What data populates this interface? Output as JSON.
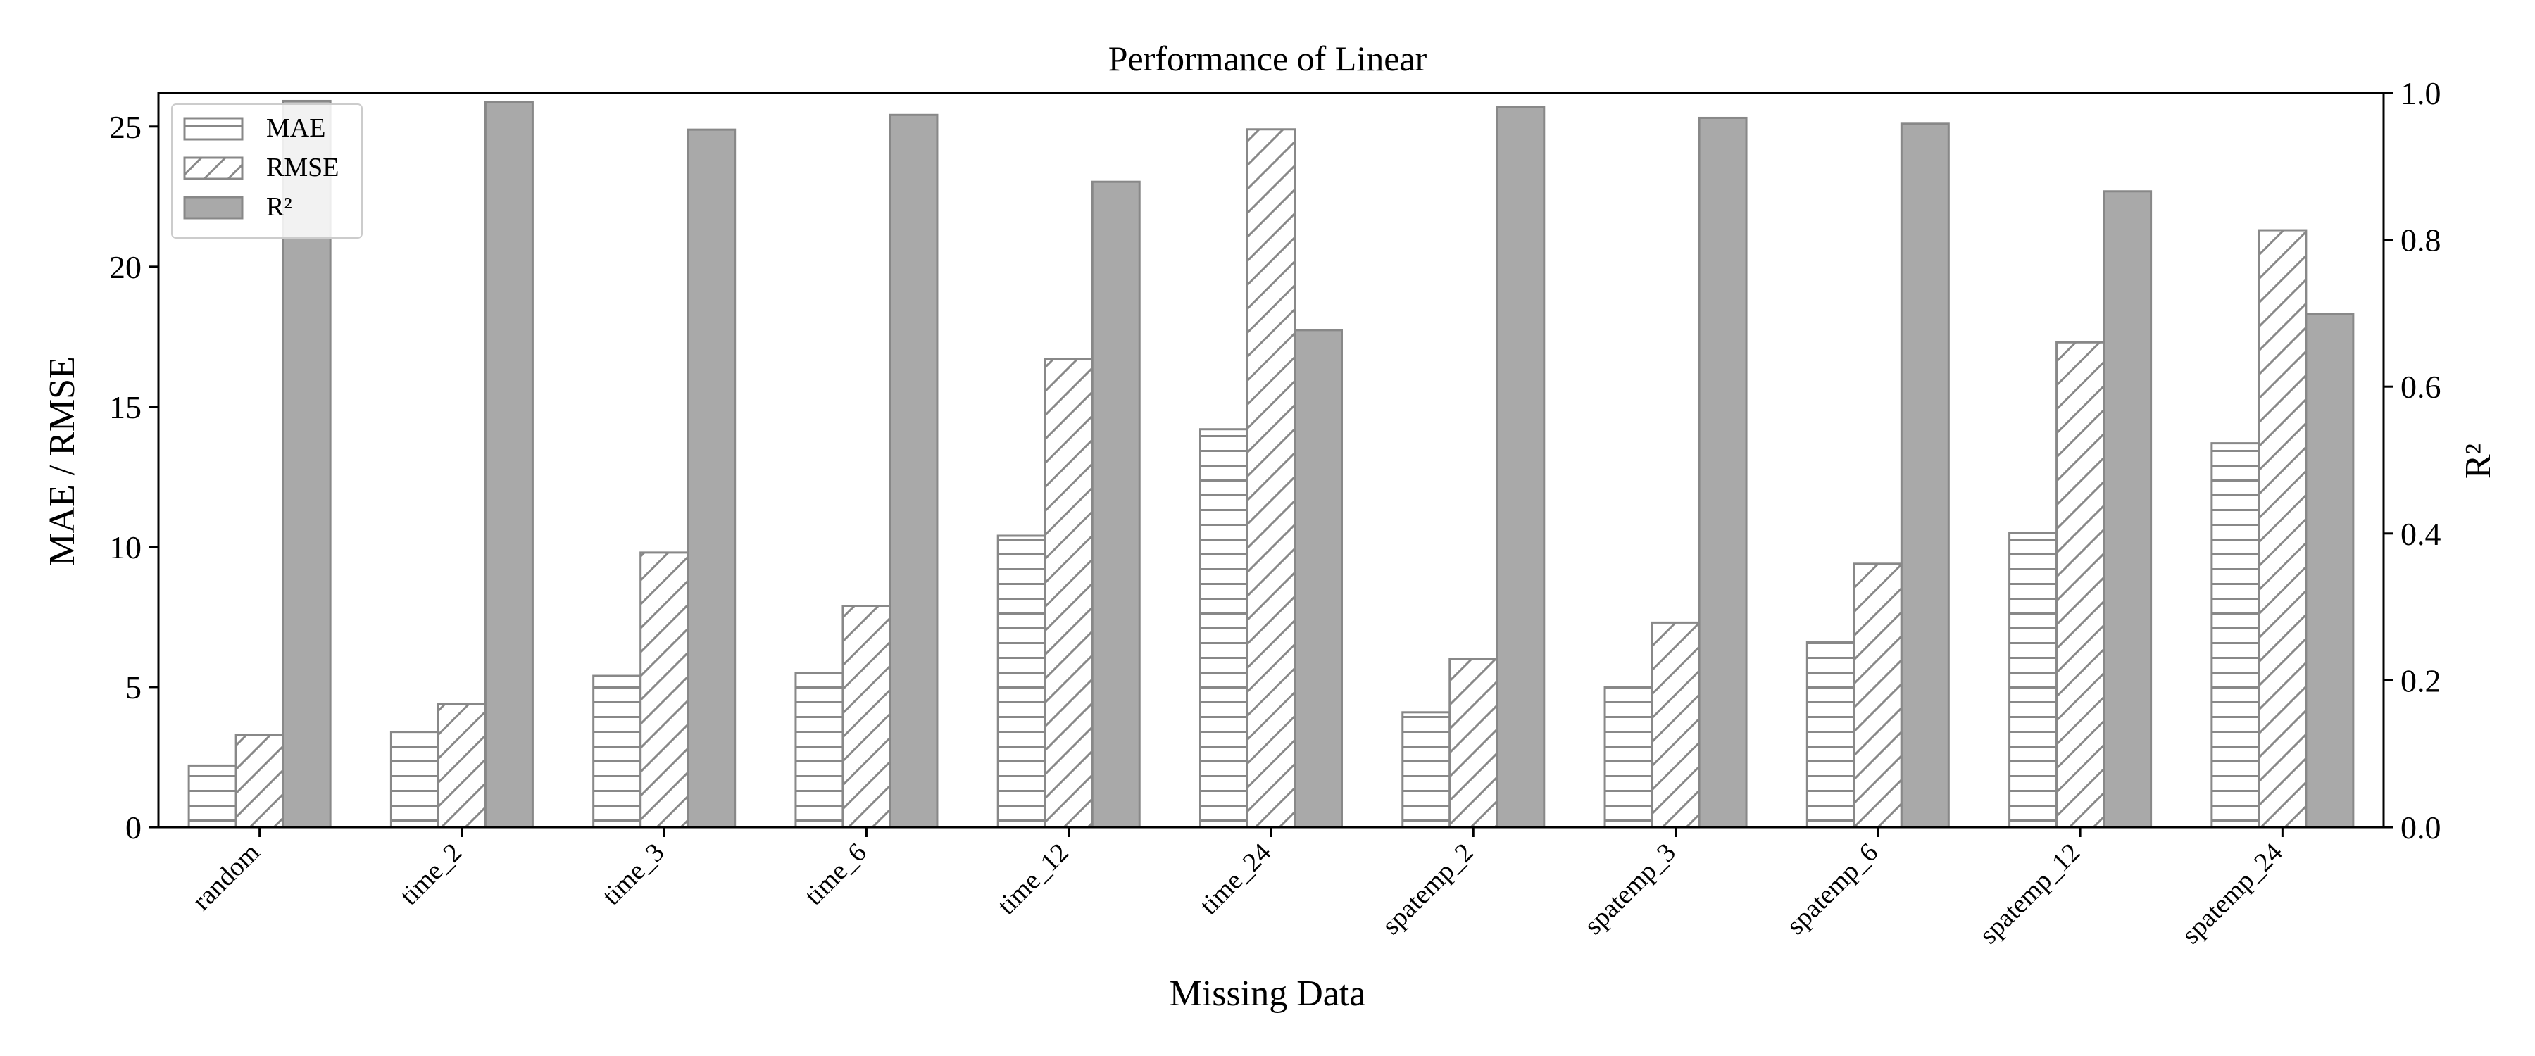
{
  "chart_data": {
    "type": "bar",
    "title": "Performance of Linear",
    "xlabel": "Missing Data",
    "ylabel_left": "MAE / RMSE",
    "ylabel_right": "R²",
    "categories": [
      "random",
      "time_2",
      "time_3",
      "time_6",
      "time_12",
      "time_24",
      "spatemp_2",
      "spatemp_3",
      "spatemp_6",
      "spatemp_12",
      "spatemp_24"
    ],
    "ylim_left": [
      0,
      26.2
    ],
    "ylim_right": [
      0,
      1.0
    ],
    "yticks_left": [
      0,
      5,
      10,
      15,
      20,
      25
    ],
    "yticks_right": [
      0.0,
      0.2,
      0.4,
      0.6,
      0.8,
      1.0
    ],
    "grid": false,
    "legend_position": "top-left",
    "series": [
      {
        "name": "MAE",
        "axis": "left",
        "pattern": "horizontal-hatch",
        "color": "#888888",
        "values": [
          2.2,
          3.4,
          5.4,
          5.5,
          10.4,
          14.2,
          4.1,
          5.0,
          6.6,
          10.5,
          13.7
        ]
      },
      {
        "name": "RMSE",
        "axis": "left",
        "pattern": "diagonal-hatch",
        "color": "#888888",
        "values": [
          3.3,
          4.4,
          9.8,
          7.9,
          16.7,
          24.9,
          6.0,
          7.3,
          9.4,
          17.3,
          21.3
        ]
      },
      {
        "name": "R²",
        "axis": "right",
        "pattern": "solid",
        "color": "#a9a9a9",
        "values": [
          0.989,
          0.988,
          0.95,
          0.97,
          0.879,
          0.677,
          0.981,
          0.966,
          0.958,
          0.866,
          0.699
        ]
      }
    ]
  }
}
